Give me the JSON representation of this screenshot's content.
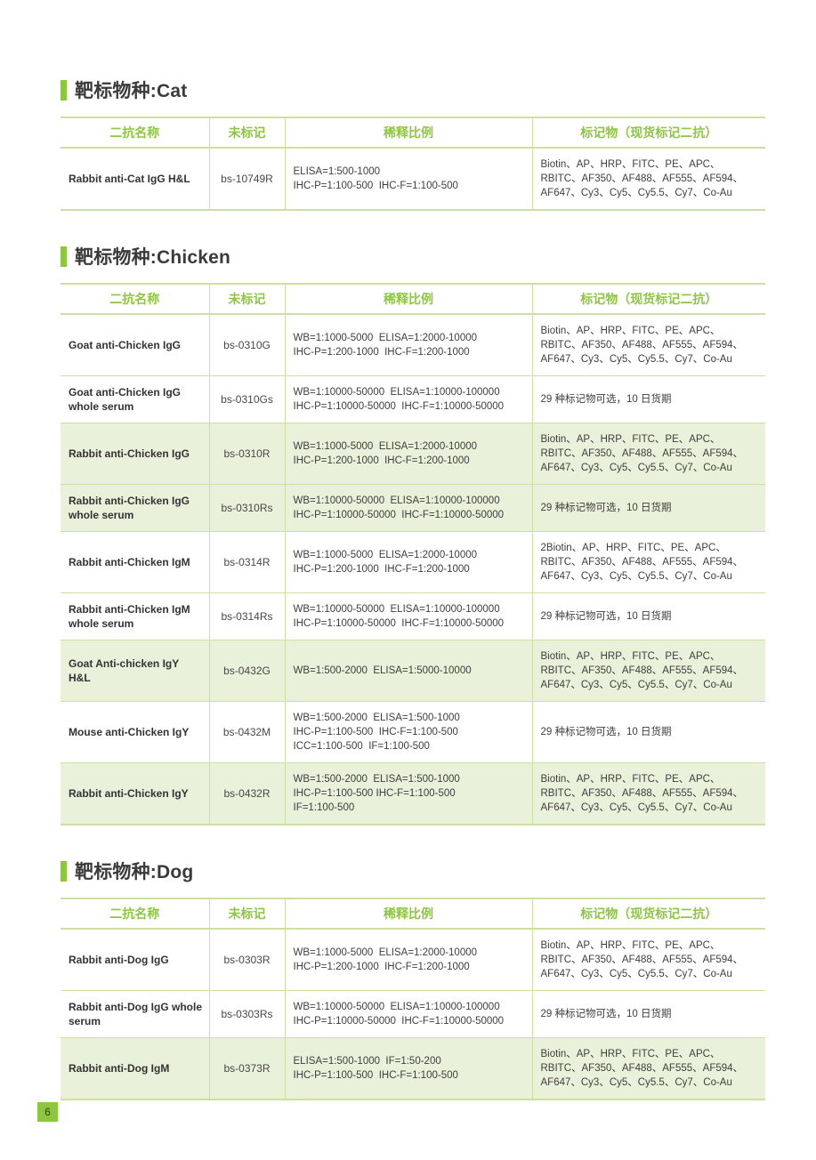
{
  "page": {
    "number": "6"
  },
  "theme": {
    "accent_green": "#8dc63f",
    "table_border_green": "#cde0a2",
    "row_highlight_green": "#eaf1da",
    "text_dark": "#3c3c3c"
  },
  "columns": [
    "二抗名称",
    "未标记",
    "稀释比例",
    "标记物（现货标记二抗）"
  ],
  "sections": [
    {
      "title": "靶标物种:Cat",
      "rows": [
        {
          "name": "Rabbit anti-Cat IgG H&L",
          "code": "bs-10749R",
          "dilution": "ELISA=1:500-1000\nIHC-P=1:100-500  IHC-F=1:100-500",
          "labels": "Biotin、AP、HRP、FITC、PE、APC、\nRBITC、AF350、AF488、AF555、AF594、\nAF647、Cy3、Cy5、Cy5.5、Cy7、Co-Au",
          "highlight": false
        }
      ]
    },
    {
      "title": "靶标物种:Chicken",
      "rows": [
        {
          "name": "Goat anti-Chicken IgG",
          "code": "bs-0310G",
          "dilution": "WB=1:1000-5000  ELISA=1:2000-10000\nIHC-P=1:200-1000  IHC-F=1:200-1000",
          "labels": "Biotin、AP、HRP、FITC、PE、APC、\nRBITC、AF350、AF488、AF555、AF594、\nAF647、Cy3、Cy5、Cy5.5、Cy7、Co-Au",
          "highlight": false
        },
        {
          "name": "Goat anti-Chicken IgG whole serum",
          "code": "bs-0310Gs",
          "dilution": "WB=1:10000-50000  ELISA=1:10000-100000\nIHC-P=1:10000-50000  IHC-F=1:10000-50000",
          "labels": "29 种标记物可选，10 日货期",
          "highlight": false
        },
        {
          "name": "Rabbit anti-Chicken IgG",
          "code": "bs-0310R",
          "dilution": "WB=1:1000-5000  ELISA=1:2000-10000\nIHC-P=1:200-1000  IHC-F=1:200-1000",
          "labels": "Biotin、AP、HRP、FITC、PE、APC、\nRBITC、AF350、AF488、AF555、AF594、\nAF647、Cy3、Cy5、Cy5.5、Cy7、Co-Au",
          "highlight": true
        },
        {
          "name": "Rabbit anti-Chicken IgG whole serum",
          "code": "bs-0310Rs",
          "dilution": "WB=1:10000-50000  ELISA=1:10000-100000\nIHC-P=1:10000-50000  IHC-F=1:10000-50000",
          "labels": "29 种标记物可选，10 日货期",
          "highlight": true
        },
        {
          "name": "Rabbit anti-Chicken IgM",
          "code": "bs-0314R",
          "dilution": "WB=1:1000-5000  ELISA=1:2000-10000\nIHC-P=1:200-1000  IHC-F=1:200-1000",
          "labels": "2Biotin、AP、HRP、FITC、PE、APC、\nRBITC、AF350、AF488、AF555、AF594、\nAF647、Cy3、Cy5、Cy5.5、Cy7、Co-Au",
          "highlight": false
        },
        {
          "name": "Rabbit anti-Chicken IgM whole serum",
          "code": "bs-0314Rs",
          "dilution": "WB=1:10000-50000  ELISA=1:10000-100000\nIHC-P=1:10000-50000  IHC-F=1:10000-50000",
          "labels": "29 种标记物可选，10 日货期",
          "highlight": false
        },
        {
          "name": "Goat Anti-chicken IgY H&L",
          "code": "bs-0432G",
          "dilution": "WB=1:500-2000  ELISA=1:5000-10000",
          "labels": "Biotin、AP、HRP、FITC、PE、APC、\nRBITC、AF350、AF488、AF555、AF594、\nAF647、Cy3、Cy5、Cy5.5、Cy7、Co-Au",
          "highlight": true
        },
        {
          "name": "Mouse anti-Chicken IgY",
          "code": "bs-0432M",
          "dilution": "WB=1:500-2000  ELISA=1:500-1000\nIHC-P=1:100-500  IHC-F=1:100-500\nICC=1:100-500  IF=1:100-500",
          "labels": "29 种标记物可选，10 日货期",
          "highlight": false
        },
        {
          "name": "Rabbit anti-Chicken IgY",
          "code": "bs-0432R",
          "dilution": "WB=1:500-2000  ELISA=1:500-1000\nIHC-P=1:100-500 IHC-F=1:100-500\nIF=1:100-500",
          "labels": "Biotin、AP、HRP、FITC、PE、APC、\nRBITC、AF350、AF488、AF555、AF594、\nAF647、Cy3、Cy5、Cy5.5、Cy7、Co-Au",
          "highlight": true
        }
      ]
    },
    {
      "title": "靶标物种:Dog",
      "rows": [
        {
          "name": "Rabbit anti-Dog IgG",
          "code": "bs-0303R",
          "dilution": "WB=1:1000-5000  ELISA=1:2000-10000\nIHC-P=1:200-1000  IHC-F=1:200-1000",
          "labels": "Biotin、AP、HRP、FITC、PE、APC、\nRBITC、AF350、AF488、AF555、AF594、\nAF647、Cy3、Cy5、Cy5.5、Cy7、Co-Au",
          "highlight": false
        },
        {
          "name": "Rabbit anti-Dog IgG whole serum",
          "code": "bs-0303Rs",
          "dilution": "WB=1:10000-50000  ELISA=1:10000-100000\nIHC-P=1:10000-50000  IHC-F=1:10000-50000",
          "labels": "29 种标记物可选，10 日货期",
          "highlight": false
        },
        {
          "name": "Rabbit anti-Dog IgM",
          "code": "bs-0373R",
          "dilution": "ELISA=1:500-1000  IF=1:50-200\nIHC-P=1:100-500  IHC-F=1:100-500",
          "labels": "Biotin、AP、HRP、FITC、PE、APC、\nRBITC、AF350、AF488、AF555、AF594、\nAF647、Cy3、Cy5、Cy5.5、Cy7、Co-Au",
          "highlight": true
        }
      ]
    }
  ]
}
